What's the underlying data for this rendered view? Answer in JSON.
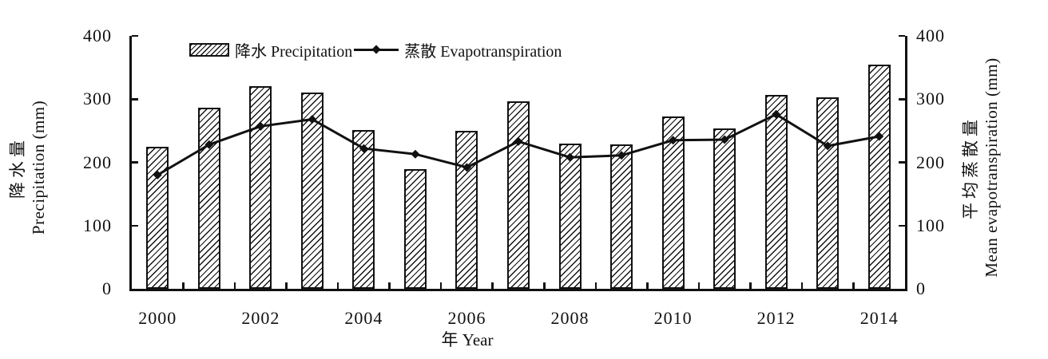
{
  "chart_data": {
    "type": "bar",
    "subtype": "bar+line dual-axis combo",
    "categories": [
      2000,
      2001,
      2002,
      2003,
      2004,
      2005,
      2006,
      2007,
      2008,
      2009,
      2010,
      2011,
      2012,
      2013,
      2014
    ],
    "series": [
      {
        "name": "降水 Precipitation",
        "type": "bar",
        "axis": "left",
        "style": "diagonal-hatch",
        "values": [
          225,
          286,
          320,
          311,
          251,
          189,
          250,
          297,
          230,
          229,
          273,
          254,
          306,
          303,
          355
        ]
      },
      {
        "name": "蒸散 Evapotranspiration",
        "type": "line",
        "axis": "right",
        "marker": "filled-diamond",
        "values": [
          180,
          228,
          257,
          268,
          222,
          213,
          192,
          233,
          208,
          211,
          235,
          236,
          276,
          226,
          241
        ]
      }
    ],
    "title": "",
    "xlabel": "年 Year",
    "x_tick_labels": [
      "2000",
      "2002",
      "2004",
      "2006",
      "2008",
      "2010",
      "2012",
      "2014"
    ],
    "left_axis": {
      "label_line1": "降水量",
      "label_line2": "Precipitation (mm)",
      "ticks": [
        0,
        100,
        200,
        300,
        400
      ],
      "range": [
        0,
        400
      ]
    },
    "right_axis": {
      "label_line1": "平均蒸散量",
      "label_line2": "Mean evapotranspiration (mm)",
      "ticks": [
        0,
        100,
        200,
        300,
        400
      ],
      "range": [
        0,
        400
      ]
    },
    "legend": [
      {
        "label": "降水 Precipitation",
        "marker": "hatched-bar-swatch"
      },
      {
        "label": "蒸散 Evapotranspiration",
        "marker": "line-with-diamond"
      }
    ],
    "legend_position": "inside-top-left",
    "grid": false,
    "colors": {
      "ink": "#111111",
      "background": "#ffffff"
    }
  }
}
